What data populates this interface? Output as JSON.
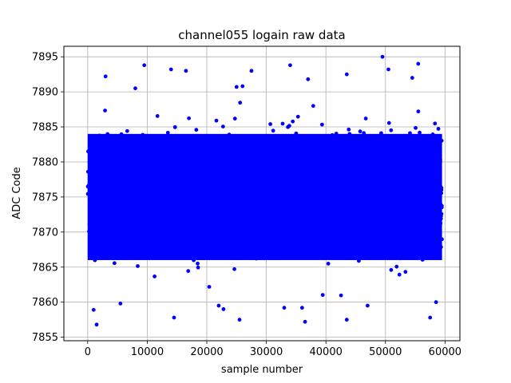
{
  "chart_data": {
    "type": "scatter",
    "title": "channel055 logain raw data",
    "xlabel": "sample number",
    "ylabel": "ADC Code",
    "xlim": [
      -4000,
      62500
    ],
    "ylim": [
      7854.5,
      7896.5
    ],
    "xticks": [
      0,
      10000,
      20000,
      30000,
      40000,
      50000,
      60000
    ],
    "yticks": [
      7855,
      7860,
      7865,
      7870,
      7875,
      7880,
      7885,
      7890,
      7895
    ],
    "grid": true,
    "marker_color": "#0000ff",
    "series": [
      {
        "description": "dense band of samples spanning the full sample range",
        "x_range": [
          0,
          59500
        ],
        "y_core_range": [
          7866,
          7884
        ],
        "y_mean": 7875.5
      }
    ],
    "outliers": [
      {
        "x": 9500,
        "y": 7893.8
      },
      {
        "x": 3000,
        "y": 7892.2
      },
      {
        "x": 14000,
        "y": 7893.2
      },
      {
        "x": 16500,
        "y": 7893.0
      },
      {
        "x": 27500,
        "y": 7893.0
      },
      {
        "x": 34000,
        "y": 7893.8
      },
      {
        "x": 37000,
        "y": 7891.8
      },
      {
        "x": 43500,
        "y": 7892.5
      },
      {
        "x": 49500,
        "y": 7895.0
      },
      {
        "x": 50500,
        "y": 7893.2
      },
      {
        "x": 54500,
        "y": 7892.0
      },
      {
        "x": 55500,
        "y": 7894.0
      },
      {
        "x": 25000,
        "y": 7890.7
      },
      {
        "x": 26000,
        "y": 7890.8
      },
      {
        "x": 8000,
        "y": 7890.5
      },
      {
        "x": 1500,
        "y": 7856.8
      },
      {
        "x": 14500,
        "y": 7857.8
      },
      {
        "x": 25500,
        "y": 7857.5
      },
      {
        "x": 36500,
        "y": 7857.2
      },
      {
        "x": 43500,
        "y": 7857.5
      },
      {
        "x": 57500,
        "y": 7857.8
      },
      {
        "x": 1000,
        "y": 7858.9
      },
      {
        "x": 22800,
        "y": 7859.0
      },
      {
        "x": 5500,
        "y": 7859.8
      },
      {
        "x": 36000,
        "y": 7859.2
      },
      {
        "x": 33000,
        "y": 7859.2
      },
      {
        "x": 58500,
        "y": 7860.0
      },
      {
        "x": 22000,
        "y": 7859.5
      },
      {
        "x": 47000,
        "y": 7859.5
      }
    ]
  }
}
